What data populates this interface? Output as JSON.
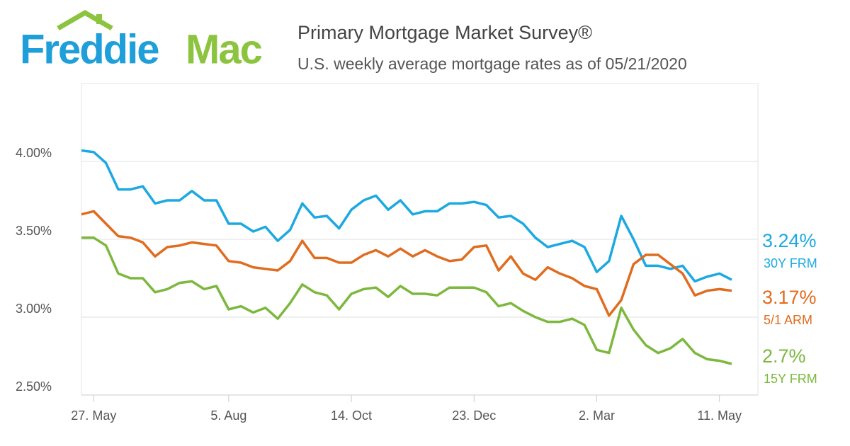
{
  "brand": {
    "first": "Freddie",
    "second": "Mac"
  },
  "chart_data": {
    "type": "line",
    "title": "Primary Mortgage Market Survey®",
    "subtitle": "U.S. weekly average mortgage rates as of 05/21/2020",
    "categories": [
      null,
      "27. May",
      null,
      null,
      null,
      null,
      null,
      null,
      null,
      null,
      null,
      null,
      "5. Aug",
      null,
      null,
      null,
      null,
      null,
      null,
      null,
      null,
      null,
      "14. Oct",
      null,
      null,
      null,
      null,
      null,
      null,
      null,
      null,
      null,
      "23. Dec",
      null,
      null,
      null,
      null,
      null,
      null,
      null,
      null,
      null,
      "2. Mar",
      null,
      null,
      null,
      null,
      null,
      null,
      null,
      null,
      null,
      "11. May",
      null
    ],
    "ylim": [
      2.5,
      4.5
    ],
    "yticks": [
      {
        "value": 2.5,
        "label": "2.50%"
      },
      {
        "value": 3,
        "label": "3.00%"
      },
      {
        "value": 3.5,
        "label": "3.50%"
      },
      {
        "value": 4,
        "label": "4.00%"
      }
    ],
    "grid": true,
    "series": [
      {
        "name": "30Y FRM",
        "color": "#1ca9e1",
        "values": [
          4.07,
          4.06,
          3.99,
          3.82,
          3.82,
          3.84,
          3.73,
          3.75,
          3.75,
          3.81,
          3.75,
          3.75,
          3.6,
          3.6,
          3.55,
          3.58,
          3.49,
          3.56,
          3.73,
          3.64,
          3.65,
          3.57,
          3.69,
          3.75,
          3.78,
          3.69,
          3.75,
          3.66,
          3.68,
          3.68,
          3.73,
          3.73,
          3.74,
          3.72,
          3.64,
          3.65,
          3.6,
          3.51,
          3.45,
          3.47,
          3.49,
          3.45,
          3.29,
          3.36,
          3.65,
          3.5,
          3.33,
          3.33,
          3.31,
          3.33,
          3.23,
          3.26,
          3.28,
          3.24
        ],
        "value_labels": [
          null,
          null,
          null,
          null,
          null,
          null,
          null,
          null,
          null,
          null,
          null,
          null,
          null,
          null,
          null,
          null,
          null,
          null,
          null,
          null,
          null,
          null,
          null,
          null,
          null,
          null,
          null,
          null,
          null,
          null,
          null,
          null,
          null,
          null,
          null,
          null,
          null,
          null,
          null,
          null,
          null,
          null,
          null,
          null,
          null,
          null,
          null,
          null,
          null,
          null,
          null,
          null,
          null,
          "3.24%"
        ]
      },
      {
        "name": "5/1 ARM",
        "color": "#e06c1f",
        "values": [
          3.66,
          3.68,
          3.6,
          3.52,
          3.51,
          3.48,
          3.39,
          3.45,
          3.46,
          3.48,
          3.47,
          3.46,
          3.36,
          3.35,
          3.32,
          3.31,
          3.3,
          3.36,
          3.49,
          3.38,
          3.38,
          3.35,
          3.35,
          3.4,
          3.43,
          3.39,
          3.44,
          3.39,
          3.43,
          3.39,
          3.36,
          3.37,
          3.45,
          3.46,
          3.3,
          3.39,
          3.28,
          3.24,
          3.32,
          3.28,
          3.25,
          3.2,
          3.18,
          3.01,
          3.11,
          3.34,
          3.4,
          3.4,
          3.34,
          3.28,
          3.14,
          3.17,
          3.18,
          3.17
        ],
        "value_labels": [
          null,
          null,
          null,
          null,
          null,
          null,
          null,
          null,
          null,
          null,
          null,
          null,
          null,
          null,
          null,
          null,
          null,
          null,
          null,
          null,
          null,
          null,
          null,
          null,
          null,
          null,
          null,
          null,
          null,
          null,
          null,
          null,
          null,
          null,
          null,
          null,
          null,
          null,
          null,
          null,
          null,
          null,
          null,
          null,
          null,
          null,
          null,
          null,
          null,
          null,
          null,
          null,
          null,
          "3.17%"
        ]
      },
      {
        "name": "15Y FRM",
        "color": "#7cb83e",
        "values": [
          3.51,
          3.51,
          3.46,
          3.28,
          3.25,
          3.25,
          3.16,
          3.18,
          3.22,
          3.23,
          3.18,
          3.2,
          3.05,
          3.07,
          3.03,
          3.06,
          2.99,
          3.09,
          3.21,
          3.16,
          3.14,
          3.05,
          3.15,
          3.18,
          3.19,
          3.13,
          3.2,
          3.15,
          3.15,
          3.14,
          3.19,
          3.19,
          3.19,
          3.16,
          3.07,
          3.09,
          3.04,
          3.0,
          2.97,
          2.97,
          2.99,
          2.95,
          2.79,
          2.77,
          3.06,
          2.92,
          2.82,
          2.77,
          2.8,
          2.86,
          2.77,
          2.73,
          2.72,
          2.7
        ],
        "value_labels": [
          null,
          null,
          null,
          null,
          null,
          null,
          null,
          null,
          null,
          null,
          null,
          null,
          null,
          null,
          null,
          null,
          null,
          null,
          null,
          null,
          null,
          null,
          null,
          null,
          null,
          null,
          null,
          null,
          null,
          null,
          null,
          null,
          null,
          null,
          null,
          null,
          null,
          null,
          null,
          null,
          null,
          null,
          null,
          null,
          null,
          null,
          null,
          null,
          null,
          null,
          null,
          null,
          null,
          "2.7%"
        ]
      }
    ]
  }
}
